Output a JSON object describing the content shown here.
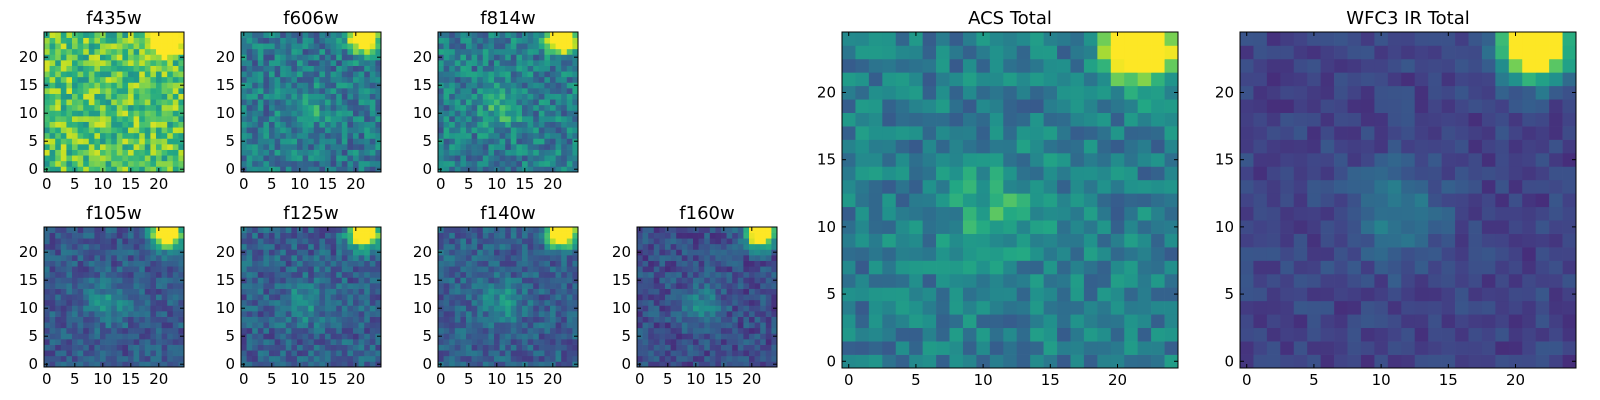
{
  "chart_data": [
    {
      "type": "heatmap",
      "title": "f435w",
      "colormap": "viridis",
      "grid_size": 25,
      "xticks": [
        "0",
        "5",
        "10",
        "15",
        "20"
      ],
      "yticks": [
        "0",
        "5",
        "10",
        "15",
        "20"
      ],
      "bright_source": "top-right corner",
      "central_source": false,
      "background_level": 0.72,
      "noise": 0.22
    },
    {
      "type": "heatmap",
      "title": "f606w",
      "colormap": "viridis",
      "grid_size": 25,
      "xticks": [
        "0",
        "5",
        "10",
        "15",
        "20"
      ],
      "yticks": [
        "0",
        "5",
        "10",
        "15",
        "20"
      ],
      "bright_source": "top-right corner",
      "central_source": true,
      "background_level": 0.4,
      "noise": 0.18
    },
    {
      "type": "heatmap",
      "title": "f814w",
      "colormap": "viridis",
      "grid_size": 25,
      "xticks": [
        "0",
        "5",
        "10",
        "15",
        "20"
      ],
      "yticks": [
        "0",
        "5",
        "10",
        "15",
        "20"
      ],
      "bright_source": "top-right corner",
      "central_source": true,
      "background_level": 0.42,
      "noise": 0.18
    },
    {
      "type": "heatmap",
      "title": "f105w",
      "colormap": "viridis",
      "grid_size": 25,
      "xticks": [
        "0",
        "5",
        "10",
        "15",
        "20"
      ],
      "yticks": [
        "0",
        "5",
        "10",
        "15",
        "20"
      ],
      "bright_source": "top-right corner",
      "central_source": true,
      "background_level": 0.28,
      "noise": 0.12
    },
    {
      "type": "heatmap",
      "title": "f125w",
      "colormap": "viridis",
      "grid_size": 25,
      "xticks": [
        "0",
        "5",
        "10",
        "15",
        "20"
      ],
      "yticks": [
        "0",
        "5",
        "10",
        "15",
        "20"
      ],
      "bright_source": "top-right corner",
      "central_source": true,
      "background_level": 0.3,
      "noise": 0.14
    },
    {
      "type": "heatmap",
      "title": "f140w",
      "colormap": "viridis",
      "grid_size": 25,
      "xticks": [
        "0",
        "5",
        "10",
        "15",
        "20"
      ],
      "yticks": [
        "0",
        "5",
        "10",
        "15",
        "20"
      ],
      "bright_source": "top-right corner",
      "central_source": true,
      "background_level": 0.3,
      "noise": 0.13
    },
    {
      "type": "heatmap",
      "title": "f160w",
      "colormap": "viridis",
      "grid_size": 25,
      "xticks": [
        "0",
        "5",
        "10",
        "15",
        "20"
      ],
      "yticks": [
        "0",
        "5",
        "10",
        "15",
        "20"
      ],
      "bright_source": "top-right corner",
      "central_source": true,
      "background_level": 0.24,
      "noise": 0.12
    },
    {
      "type": "heatmap",
      "title": "ACS Total",
      "colormap": "viridis",
      "grid_size": 25,
      "xticks": [
        "0",
        "5",
        "10",
        "15",
        "20"
      ],
      "yticks": [
        "0",
        "5",
        "10",
        "15",
        "20"
      ],
      "bright_source": "top-right corner",
      "central_source": true,
      "background_level": 0.42,
      "noise": 0.14
    },
    {
      "type": "heatmap",
      "title": "WFC3 IR Total",
      "colormap": "viridis",
      "grid_size": 25,
      "xticks": [
        "0",
        "5",
        "10",
        "15",
        "20"
      ],
      "yticks": [
        "0",
        "5",
        "10",
        "15",
        "20"
      ],
      "bright_source": "top-right corner",
      "central_source": true,
      "background_level": 0.2,
      "noise": 0.07
    }
  ]
}
